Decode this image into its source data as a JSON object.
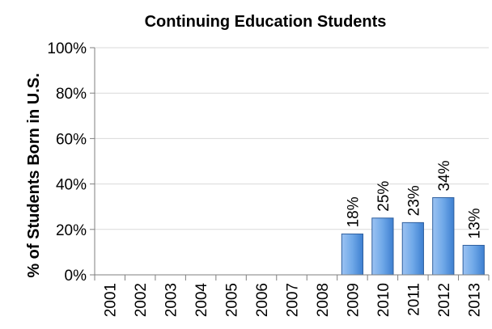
{
  "chart_data": {
    "type": "bar",
    "title": "Continuing Education Students",
    "xlabel": "",
    "ylabel": "% of Students Born in U.S.",
    "categories": [
      "2001",
      "2002",
      "2003",
      "2004",
      "2005",
      "2006",
      "2007",
      "2008",
      "2009",
      "2010",
      "2011",
      "2012",
      "2013"
    ],
    "values": [
      null,
      null,
      null,
      null,
      null,
      null,
      null,
      null,
      18,
      25,
      23,
      34,
      13
    ],
    "data_labels": [
      "",
      "",
      "",
      "",
      "",
      "",
      "",
      "",
      "18%",
      "25%",
      "23%",
      "34%",
      "13%"
    ],
    "ylim": [
      0,
      100
    ],
    "yticks": [
      "0%",
      "20%",
      "40%",
      "60%",
      "80%",
      "100%"
    ],
    "grid": true,
    "legend": "none",
    "bar_color": "#5b9be0",
    "bar_edge_color": "#2f5f9e"
  }
}
